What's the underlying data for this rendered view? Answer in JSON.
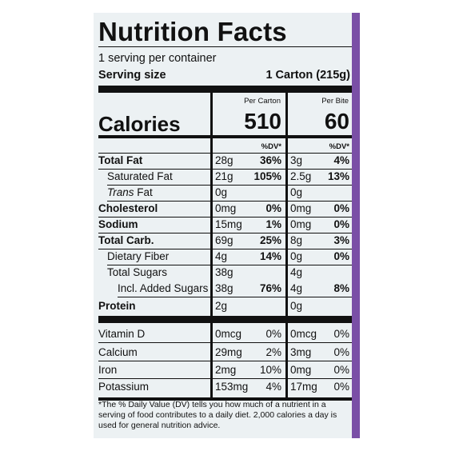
{
  "title": "Nutrition Facts",
  "servings_line": "1 serving per container",
  "serving_size": {
    "label": "Serving size",
    "value": "1 Carton (215g)"
  },
  "columns": {
    "per_carton": "Per Carton",
    "per_bite": "Per Bite"
  },
  "calories": {
    "label": "Calories",
    "per_carton": "510",
    "per_bite": "60"
  },
  "dv_header": "%DV*",
  "nutrients": [
    {
      "label": "Total Fat",
      "carton_amt": "28g",
      "carton_dv": "36%",
      "bite_amt": "3g",
      "bite_dv": "4%"
    },
    {
      "label": "Saturated Fat",
      "carton_amt": "21g",
      "carton_dv": "105%",
      "bite_amt": "2.5g",
      "bite_dv": "13%"
    },
    {
      "label": "Trans",
      "label_suffix": " Fat",
      "carton_amt": "0g",
      "carton_dv": "",
      "bite_amt": "0g",
      "bite_dv": ""
    },
    {
      "label": "Cholesterol",
      "carton_amt": "0mg",
      "carton_dv": "0%",
      "bite_amt": "0mg",
      "bite_dv": "0%"
    },
    {
      "label": "Sodium",
      "carton_amt": "15mg",
      "carton_dv": "1%",
      "bite_amt": "0mg",
      "bite_dv": "0%"
    },
    {
      "label": "Total Carb.",
      "carton_amt": "69g",
      "carton_dv": "25%",
      "bite_amt": "8g",
      "bite_dv": "3%"
    },
    {
      "label": "Dietary Fiber",
      "carton_amt": "4g",
      "carton_dv": "14%",
      "bite_amt": "0g",
      "bite_dv": "0%"
    },
    {
      "label": "Total Sugars",
      "carton_amt": "38g",
      "carton_dv": "",
      "bite_amt": "4g",
      "bite_dv": ""
    },
    {
      "label": "Incl. Added Sugars",
      "carton_amt": "38g",
      "carton_dv": "76%",
      "bite_amt": "4g",
      "bite_dv": "8%"
    },
    {
      "label": "Protein",
      "carton_amt": "2g",
      "carton_dv": "",
      "bite_amt": "0g",
      "bite_dv": ""
    }
  ],
  "vitamins": [
    {
      "label": "Vitamin D",
      "carton_amt": "0mcg",
      "carton_dv": "0%",
      "bite_amt": "0mcg",
      "bite_dv": "0%"
    },
    {
      "label": "Calcium",
      "carton_amt": "29mg",
      "carton_dv": "2%",
      "bite_amt": "3mg",
      "bite_dv": "0%"
    },
    {
      "label": "Iron",
      "carton_amt": "2mg",
      "carton_dv": "10%",
      "bite_amt": "0mg",
      "bite_dv": "0%"
    },
    {
      "label": "Potassium",
      "carton_amt": "153mg",
      "carton_dv": "4%",
      "bite_amt": "17mg",
      "bite_dv": "0%"
    }
  ],
  "footnote": "*The % Daily Value (DV) tells you how much of a nutrient in a serving of food contributes to a daily diet. 2,000 calories a day is used for general nutrition advice.",
  "colors": {
    "panel": "#ecf1f3",
    "border": "#7a4fa6",
    "ink": "#111111"
  }
}
